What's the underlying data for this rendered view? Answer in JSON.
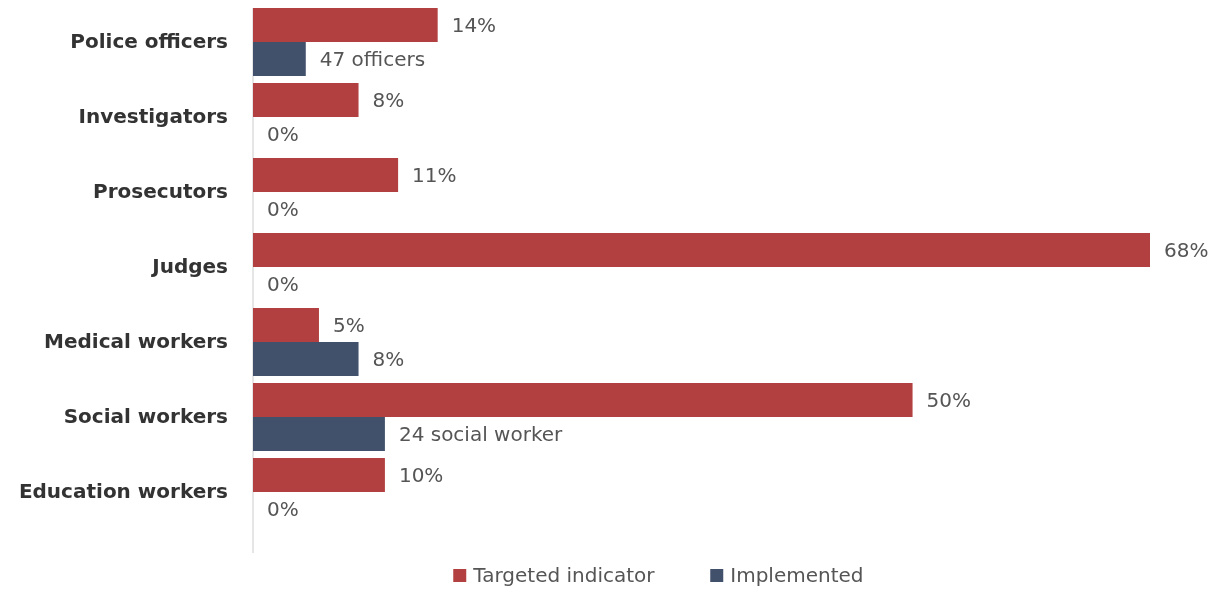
{
  "chart_data": {
    "type": "bar",
    "orientation": "horizontal",
    "categories": [
      "Police officers",
      "Investigators",
      "Prosecutors",
      "Judges",
      "Medical workers",
      "Social workers",
      "Education workers"
    ],
    "series": [
      {
        "name": "Targeted indicator",
        "color": "#b24040",
        "values": [
          14,
          8,
          11,
          68,
          5,
          50,
          10
        ],
        "value_labels": [
          "14%",
          "8%",
          "11%",
          "68%",
          "5%",
          "50%",
          "10%"
        ]
      },
      {
        "name": "Implemented",
        "color": "#41506b",
        "values": [
          4,
          0,
          0,
          0,
          8,
          10,
          0
        ],
        "value_labels": [
          null,
          "0%",
          "0%",
          "0%",
          "8%",
          null,
          "0%"
        ]
      }
    ],
    "annotations": [
      {
        "text": "47 officers",
        "x": 4,
        "y": "Police officers"
      },
      {
        "text": "24 social worker",
        "x": 10,
        "y": "Social workers"
      }
    ],
    "legend": "bottom"
  }
}
